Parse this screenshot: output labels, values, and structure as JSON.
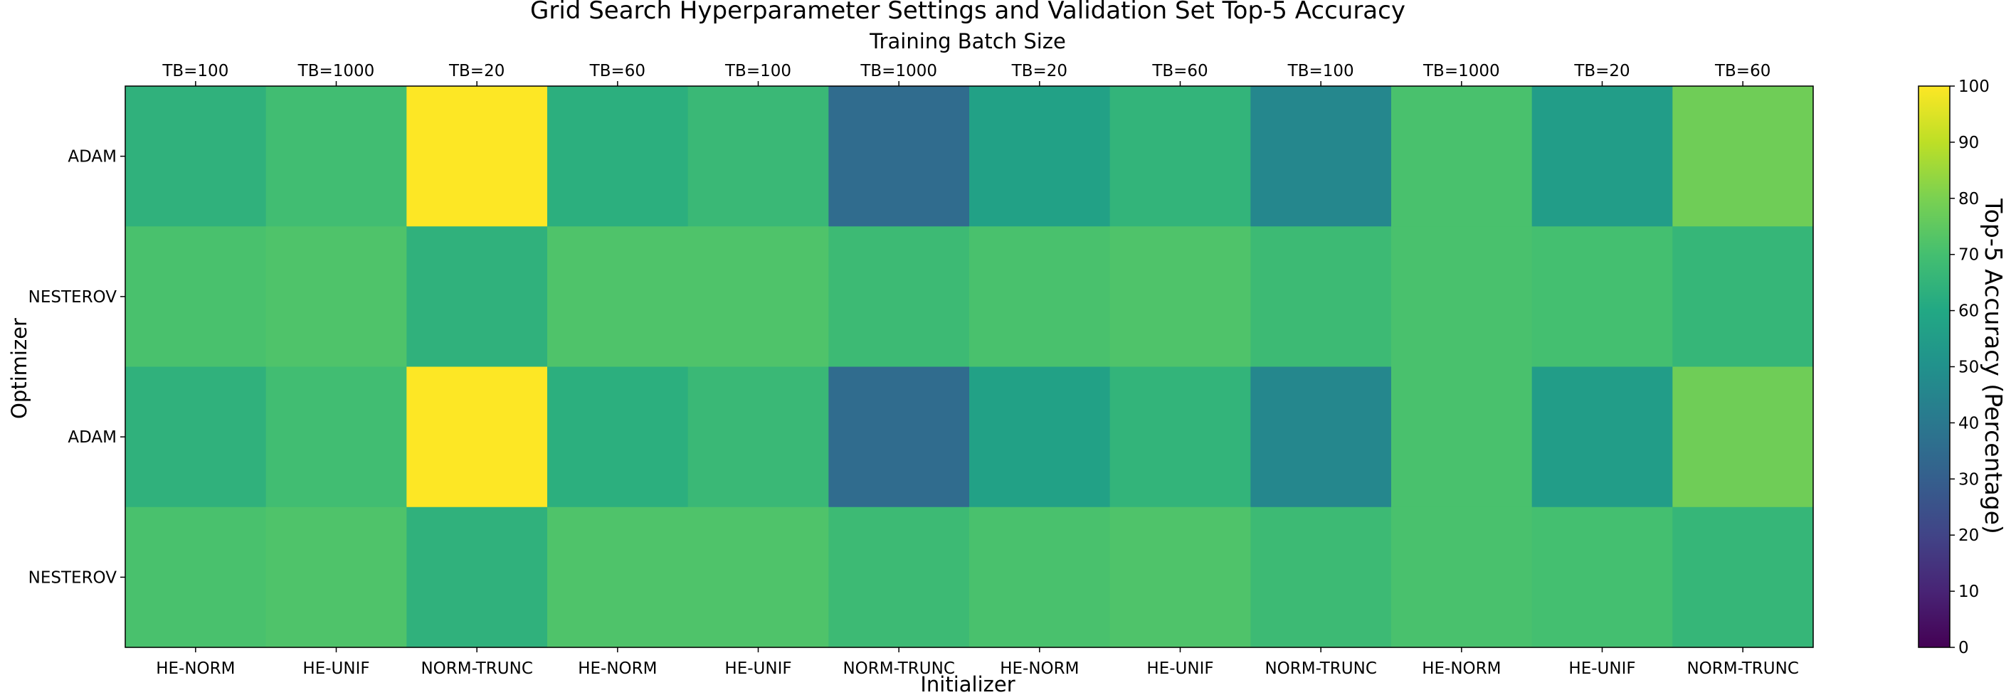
{
  "chart_data": {
    "type": "heatmap",
    "title": "Grid Search Hyperparameter Settings and Validation Set Top-5 Accuracy",
    "top_axis_label": "Training Batch Size",
    "xlabel": "Initializer",
    "ylabel": "Optimizer",
    "top_categories": [
      "TB=100",
      "TB=1000",
      "TB=20",
      "TB=60",
      "TB=100",
      "TB=1000",
      "TB=20",
      "TB=60",
      "TB=100",
      "TB=1000",
      "TB=20",
      "TB=60"
    ],
    "x_categories": [
      "HE-NORM",
      "HE-UNIF",
      "NORM-TRUNC",
      "HE-NORM",
      "HE-UNIF",
      "NORM-TRUNC",
      "HE-NORM",
      "HE-UNIF",
      "NORM-TRUNC",
      "HE-NORM",
      "HE-UNIF",
      "NORM-TRUNC"
    ],
    "y_categories": [
      "ADAM",
      "NESTEROV",
      "ADAM",
      "NESTEROV"
    ],
    "values": [
      [
        64,
        69,
        100,
        63,
        67,
        35,
        57,
        65,
        46,
        71,
        55,
        78
      ],
      [
        71,
        72,
        64,
        72,
        72,
        68,
        71,
        72,
        68,
        71,
        70,
        66
      ],
      [
        64,
        69,
        100,
        63,
        67,
        35,
        57,
        65,
        46,
        71,
        55,
        78
      ],
      [
        71,
        72,
        64,
        72,
        72,
        68,
        71,
        72,
        68,
        71,
        70,
        66
      ]
    ],
    "colorbar": {
      "label": "Top-5 Accuracy (Percentage)",
      "min": 0,
      "max": 100,
      "ticks": [
        "0",
        "10",
        "20",
        "30",
        "40",
        "50",
        "60",
        "70",
        "80",
        "90",
        "100"
      ],
      "colormap": "viridis"
    }
  }
}
